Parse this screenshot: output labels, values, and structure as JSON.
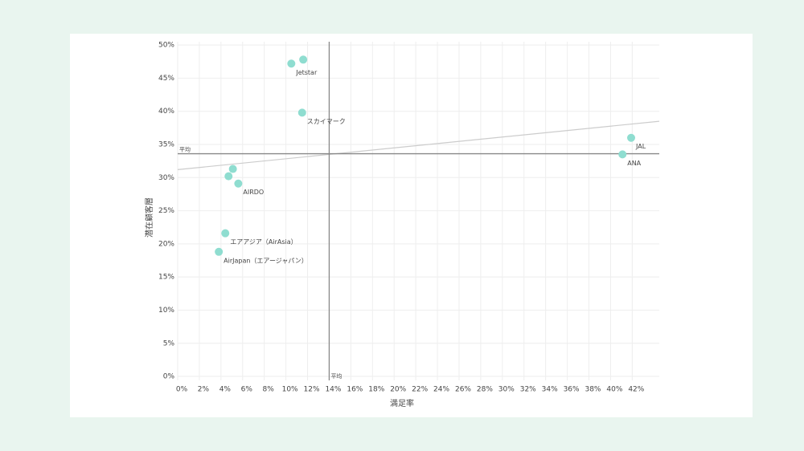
{
  "chart_data": {
    "type": "scatter",
    "x_label": "満足率",
    "y_label": "潜在顧客層",
    "xlim": [
      0,
      44.5
    ],
    "ylim": [
      -0.6,
      50.5
    ],
    "xticks": [
      {
        "value": 0,
        "label": "0%"
      },
      {
        "value": 2,
        "label": "2%"
      },
      {
        "value": 4,
        "label": "4%"
      },
      {
        "value": 6,
        "label": "6%"
      },
      {
        "value": 8,
        "label": "8%"
      },
      {
        "value": 10,
        "label": "10%"
      },
      {
        "value": 12,
        "label": "12%"
      },
      {
        "value": 14,
        "label": "14%"
      },
      {
        "value": 16,
        "label": "16%"
      },
      {
        "value": 18,
        "label": "18%"
      },
      {
        "value": 20,
        "label": "20%"
      },
      {
        "value": 22,
        "label": "22%"
      },
      {
        "value": 24,
        "label": "24%"
      },
      {
        "value": 26,
        "label": "26%"
      },
      {
        "value": 28,
        "label": "28%"
      },
      {
        "value": 30,
        "label": "30%"
      },
      {
        "value": 32,
        "label": "32%"
      },
      {
        "value": 34,
        "label": "34%"
      },
      {
        "value": 36,
        "label": "36%"
      },
      {
        "value": 38,
        "label": "38%"
      },
      {
        "value": 40,
        "label": "40%"
      },
      {
        "value": 42,
        "label": "42%"
      }
    ],
    "yticks": [
      {
        "value": 0,
        "label": "0%"
      },
      {
        "value": 5,
        "label": "5%"
      },
      {
        "value": 10,
        "label": "10%"
      },
      {
        "value": 15,
        "label": "15%"
      },
      {
        "value": 20,
        "label": "20%"
      },
      {
        "value": 25,
        "label": "25%"
      },
      {
        "value": 30,
        "label": "30%"
      },
      {
        "value": 35,
        "label": "35%"
      },
      {
        "value": 40,
        "label": "40%"
      },
      {
        "value": 45,
        "label": "45%"
      },
      {
        "value": 50,
        "label": "50%"
      }
    ],
    "grid": true,
    "series": [
      {
        "color": "#8fddd0",
        "x": [
          10.5,
          11.6,
          11.5,
          41.9,
          41.1,
          5.1,
          4.7,
          5.6,
          4.4,
          3.8
        ],
        "values": [
          47.2,
          47.8,
          39.8,
          36.0,
          33.5,
          31.3,
          30.2,
          29.1,
          21.6,
          18.8
        ],
        "point_labels": [
          "Jetstar",
          null,
          "スカイマーク",
          "JAL",
          "ANA",
          null,
          null,
          "AIRDO",
          "エアアジア（AirAsia）",
          "AirJapan（エアージャパン）"
        ]
      }
    ],
    "avg_x": {
      "value": 14,
      "label": "平均"
    },
    "avg_y": {
      "value": 33.6,
      "label": "平均"
    },
    "trendline": {
      "x": [
        0,
        44.5
      ],
      "values": [
        31.2,
        38.5
      ]
    }
  }
}
